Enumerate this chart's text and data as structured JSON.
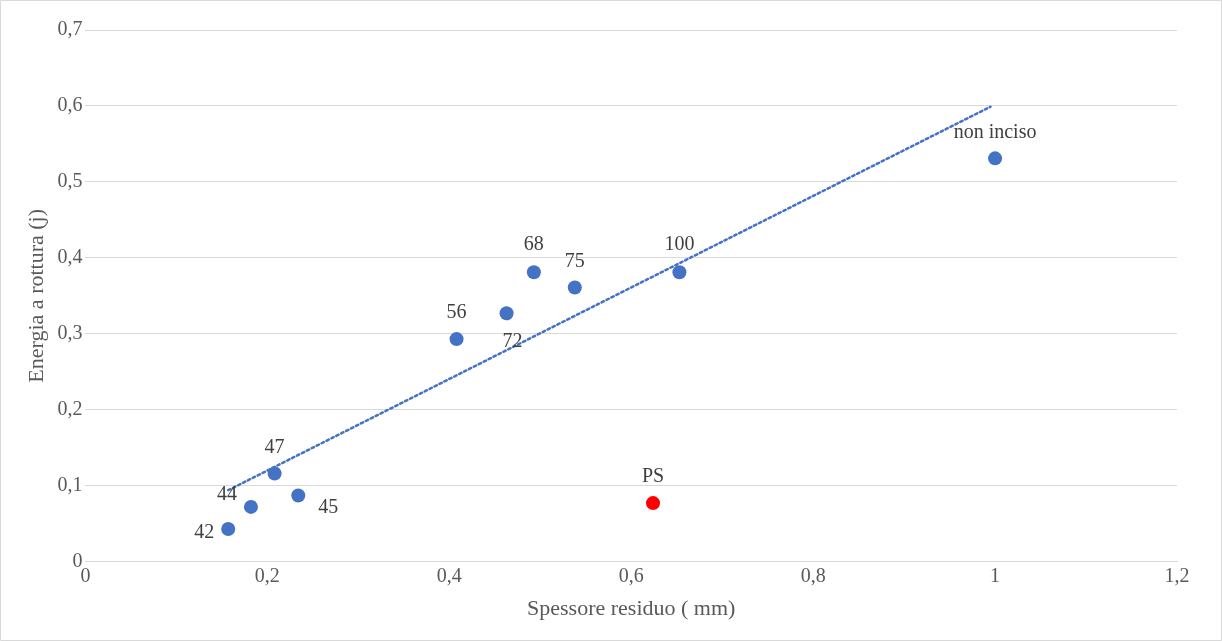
{
  "chart_data": {
    "type": "scatter",
    "xlabel": "Spessore residuo ( mm)",
    "ylabel": "Energia a rottura (j)",
    "x": [
      0.157,
      0.182,
      0.208,
      0.234,
      0.408,
      0.463,
      0.493,
      0.538,
      0.653,
      1.0,
      0.624
    ],
    "series": [
      {
        "type": "scatter",
        "color": "#4472c4",
        "colors": [
          "#4472c4",
          "#4472c4",
          "#4472c4",
          "#4472c4",
          "#4472c4",
          "#4472c4",
          "#4472c4",
          "#4472c4",
          "#4472c4",
          "#4472c4",
          "#ff0000"
        ],
        "values": [
          0.043,
          0.072,
          0.116,
          0.087,
          0.293,
          0.327,
          0.381,
          0.361,
          0.381,
          0.531,
          0.077
        ],
        "marker": "circle"
      },
      {
        "type": "line",
        "x": [
          0.157,
          0.995
        ],
        "values": [
          0.094,
          0.599
        ],
        "color": "#4472c4",
        "line_style": "dotted",
        "marker": "none"
      }
    ],
    "annotations": [
      {
        "text": "42",
        "x": 0.157,
        "y": 0.043
      },
      {
        "text": "44",
        "x": 0.182,
        "y": 0.072
      },
      {
        "text": "47",
        "x": 0.208,
        "y": 0.116
      },
      {
        "text": "45",
        "x": 0.234,
        "y": 0.087
      },
      {
        "text": "56",
        "x": 0.408,
        "y": 0.293
      },
      {
        "text": "72",
        "x": 0.463,
        "y": 0.327
      },
      {
        "text": "68",
        "x": 0.493,
        "y": 0.381
      },
      {
        "text": "75",
        "x": 0.538,
        "y": 0.361
      },
      {
        "text": "100",
        "x": 0.653,
        "y": 0.381
      },
      {
        "text": "non inciso",
        "x": 1.0,
        "y": 0.531
      },
      {
        "text": "PS",
        "x": 0.624,
        "y": 0.077
      }
    ],
    "xlim": [
      0,
      1.2
    ],
    "xticks": [
      0,
      {
        "value": 0.2,
        "label": "0,2"
      },
      {
        "value": 0.4,
        "label": "0,4"
      },
      {
        "value": 0.6,
        "label": "0,6"
      },
      {
        "value": 0.8,
        "label": "0,8"
      },
      1,
      {
        "value": 1.2,
        "label": "1,2"
      }
    ],
    "ylim": [
      0,
      0.7
    ],
    "yticks": [
      0,
      {
        "value": 0.1,
        "label": "0,1"
      },
      {
        "value": 0.2,
        "label": "0,2"
      },
      {
        "value": 0.3,
        "label": "0,3"
      },
      {
        "value": 0.4,
        "label": "0,4"
      },
      {
        "value": 0.5,
        "label": "0,5"
      },
      {
        "value": 0.6,
        "label": "0,6"
      },
      {
        "value": 0.7,
        "label": "0,7"
      }
    ],
    "grid": "y",
    "legend": false
  }
}
